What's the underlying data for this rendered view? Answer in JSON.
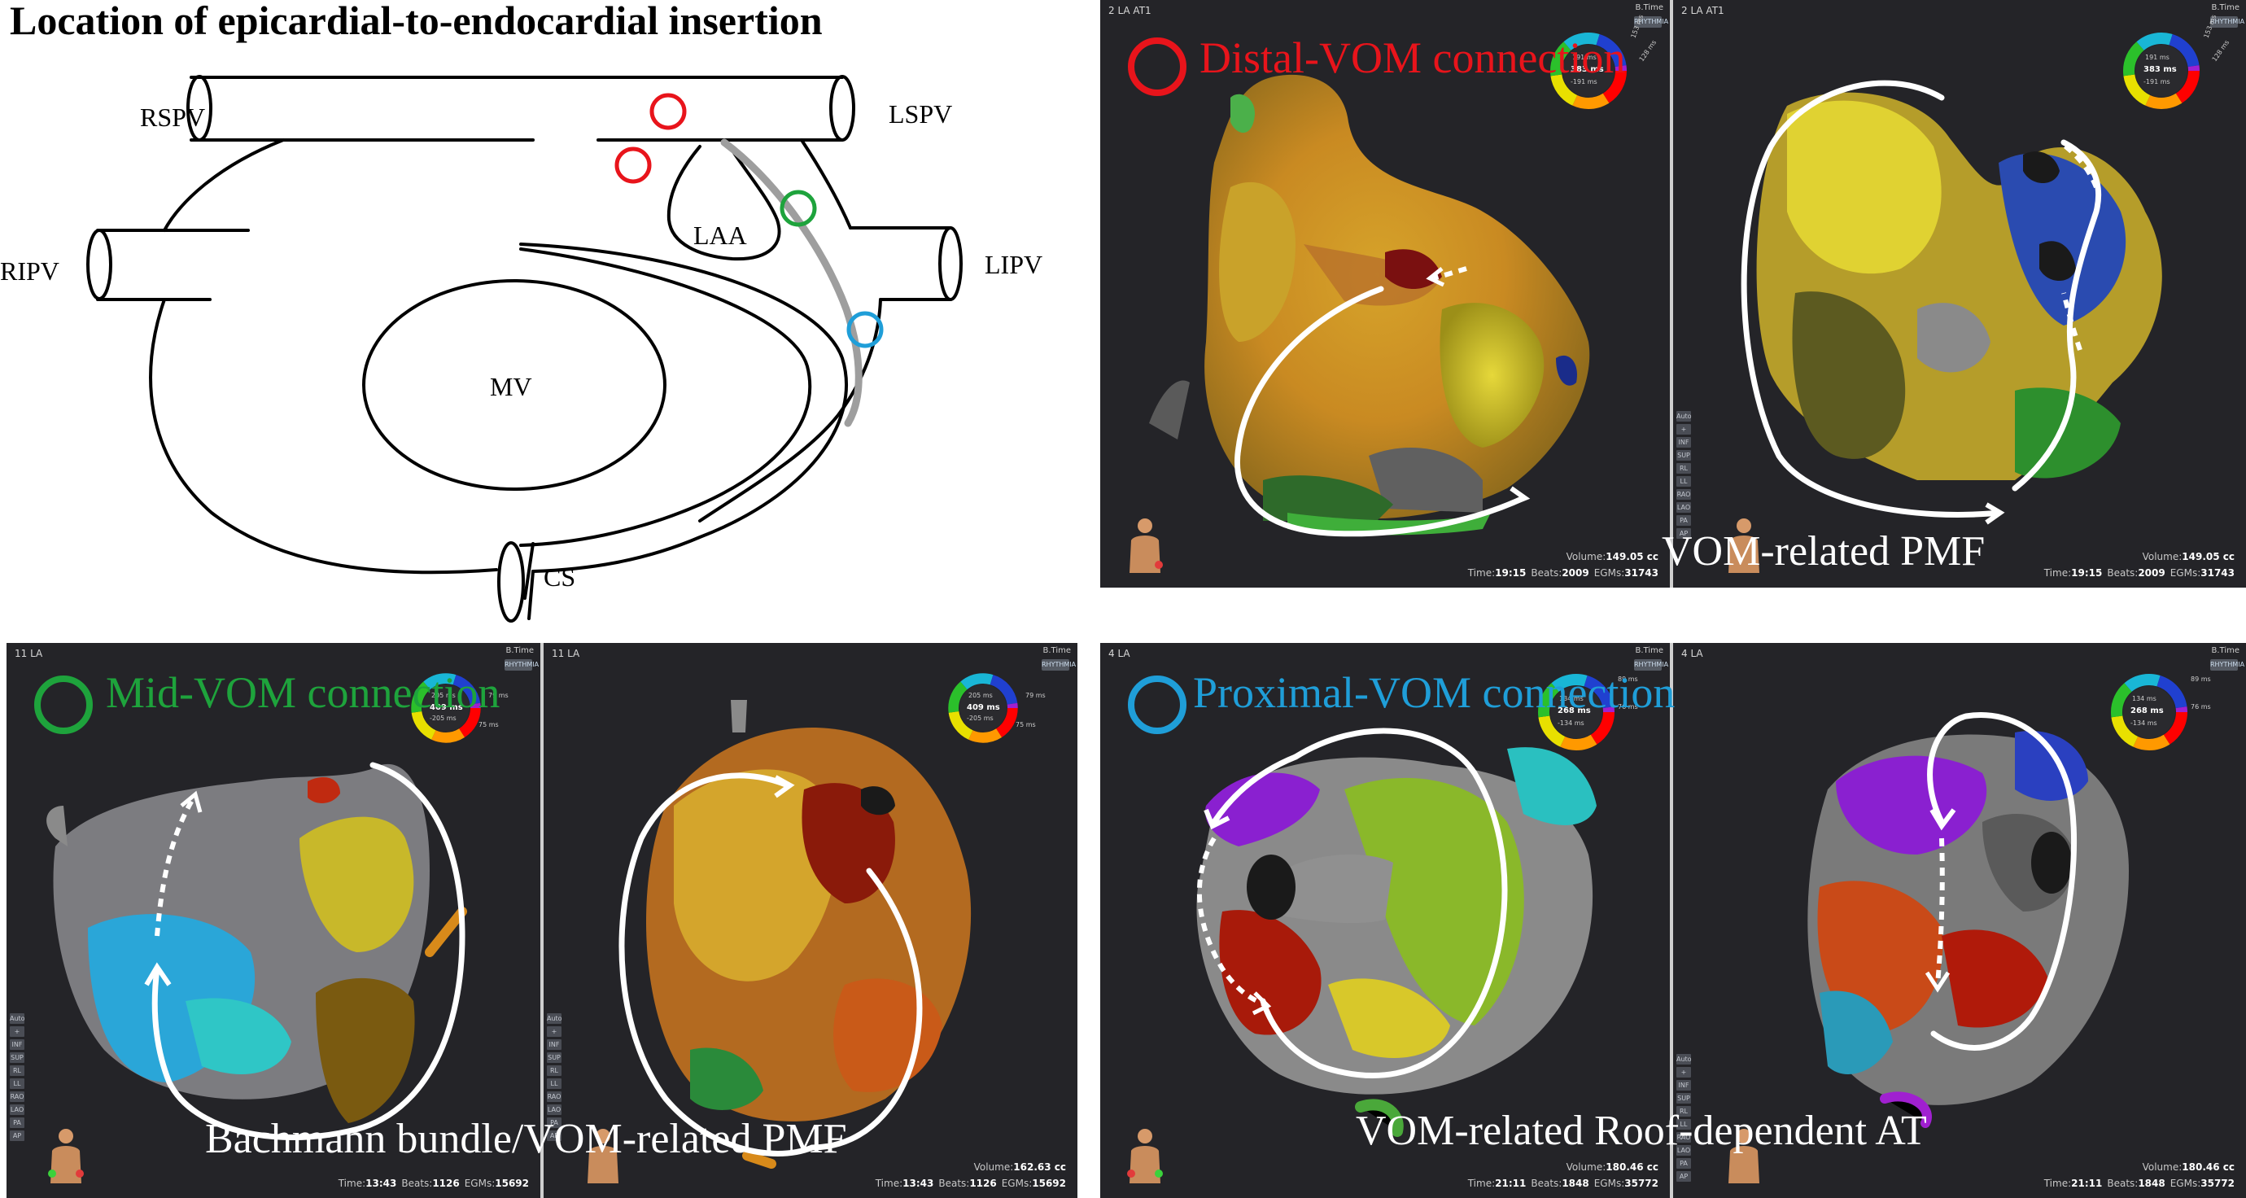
{
  "schematic": {
    "title": "Location of epicardial-to-endocardial insertion",
    "labels": {
      "rspv": "RSPV",
      "lspv": "LSPV",
      "ripv": "RIPV",
      "lipv": "LIPV",
      "laa": "LAA",
      "mv": "MV",
      "cs": "CS"
    },
    "colors": {
      "distal": "#e8141b",
      "mid": "#1ea33c",
      "proximal": "#1f9ed8",
      "vom_line": "#9e9e9e"
    }
  },
  "panels": {
    "distal": {
      "label": "Distal-VOM connection",
      "label_color": "#e8141b",
      "caption": "VOM-related PMF",
      "left": {
        "title": "2 LA AT1",
        "btime": "B.Time",
        "legend": {
          "top": "191 ms",
          "center": "383 ms",
          "bottom": "-191 ms",
          "r1": "153 ms",
          "r2": "128 ms"
        },
        "stats": {
          "volume_label": "Volume:",
          "volume": "149.05 cc",
          "time_label": "Time:",
          "time": "19:15",
          "beats_label": "Beats:",
          "beats": "2009",
          "egms_label": "EGMs:",
          "egms": "31743"
        }
      },
      "right": {
        "title": "2 LA AT1",
        "btime": "B.Time",
        "legend": {
          "top": "191 ms",
          "center": "383 ms",
          "bottom": "-191 ms",
          "r1": "153 ms",
          "r2": "128 ms"
        },
        "stats": {
          "volume_label": "Volume:",
          "volume": "149.05 cc",
          "time_label": "Time:",
          "time": "19:15",
          "beats_label": "Beats:",
          "beats": "2009",
          "egms_label": "EGMs:",
          "egms": "31743"
        }
      }
    },
    "mid": {
      "label": "Mid-VOM connection",
      "label_color": "#1ea33c",
      "caption": "Bachmann bundle/VOM-related PMF",
      "left": {
        "title": "11 LA",
        "btime": "B.Time",
        "legend": {
          "top": "205 ms",
          "center": "409 ms",
          "bottom": "-205 ms",
          "r1": "79 ms",
          "r2": "75 ms"
        },
        "stats": {
          "time_label": "Time:",
          "time": "13:43",
          "beats_label": "Beats:",
          "beats": "1126",
          "egms_label": "EGMs:",
          "egms": "15692"
        }
      },
      "right": {
        "title": "11 LA",
        "btime": "B.Time",
        "legend": {
          "top": "205 ms",
          "center": "409 ms",
          "bottom": "-205 ms",
          "r1": "79 ms",
          "r2": "75 ms"
        },
        "stats": {
          "volume_label": "Volume:",
          "volume": "162.63 cc",
          "time_label": "Time:",
          "time": "13:43",
          "beats_label": "Beats:",
          "beats": "1126",
          "egms_label": "EGMs:",
          "egms": "15692"
        }
      }
    },
    "proximal": {
      "label": "Proximal-VOM connection",
      "label_color": "#1f9ed8",
      "caption": "VOM-related Roof-dependent AT",
      "left": {
        "title": "4 LA",
        "btime": "B.Time",
        "legend": {
          "top": "134 ms",
          "center": "268 ms",
          "bottom": "-134 ms",
          "r1": "89 ms",
          "r2": "76 ms"
        },
        "stats": {
          "volume_label": "Volume:",
          "volume": "180.46 cc",
          "time_label": "Time:",
          "time": "21:11",
          "beats_label": "Beats:",
          "beats": "1848",
          "egms_label": "EGMs:",
          "egms": "35772"
        }
      },
      "right": {
        "title": "4 LA",
        "btime": "B.Time",
        "legend": {
          "top": "134 ms",
          "center": "268 ms",
          "bottom": "-134 ms",
          "r1": "89 ms",
          "r2": "76 ms"
        },
        "stats": {
          "volume_label": "Volume:",
          "volume": "180.46 cc",
          "time_label": "Time:",
          "time": "21:11",
          "beats_label": "Beats:",
          "beats": "1848",
          "egms_label": "EGMs:",
          "egms": "35772"
        }
      }
    }
  },
  "toolbar_items": [
    "Auto",
    "+",
    "INF",
    "SUP",
    "RL",
    "LL",
    "RAO",
    "LAO",
    "PA",
    "AP"
  ],
  "logo_text": "RHYTHMIA"
}
